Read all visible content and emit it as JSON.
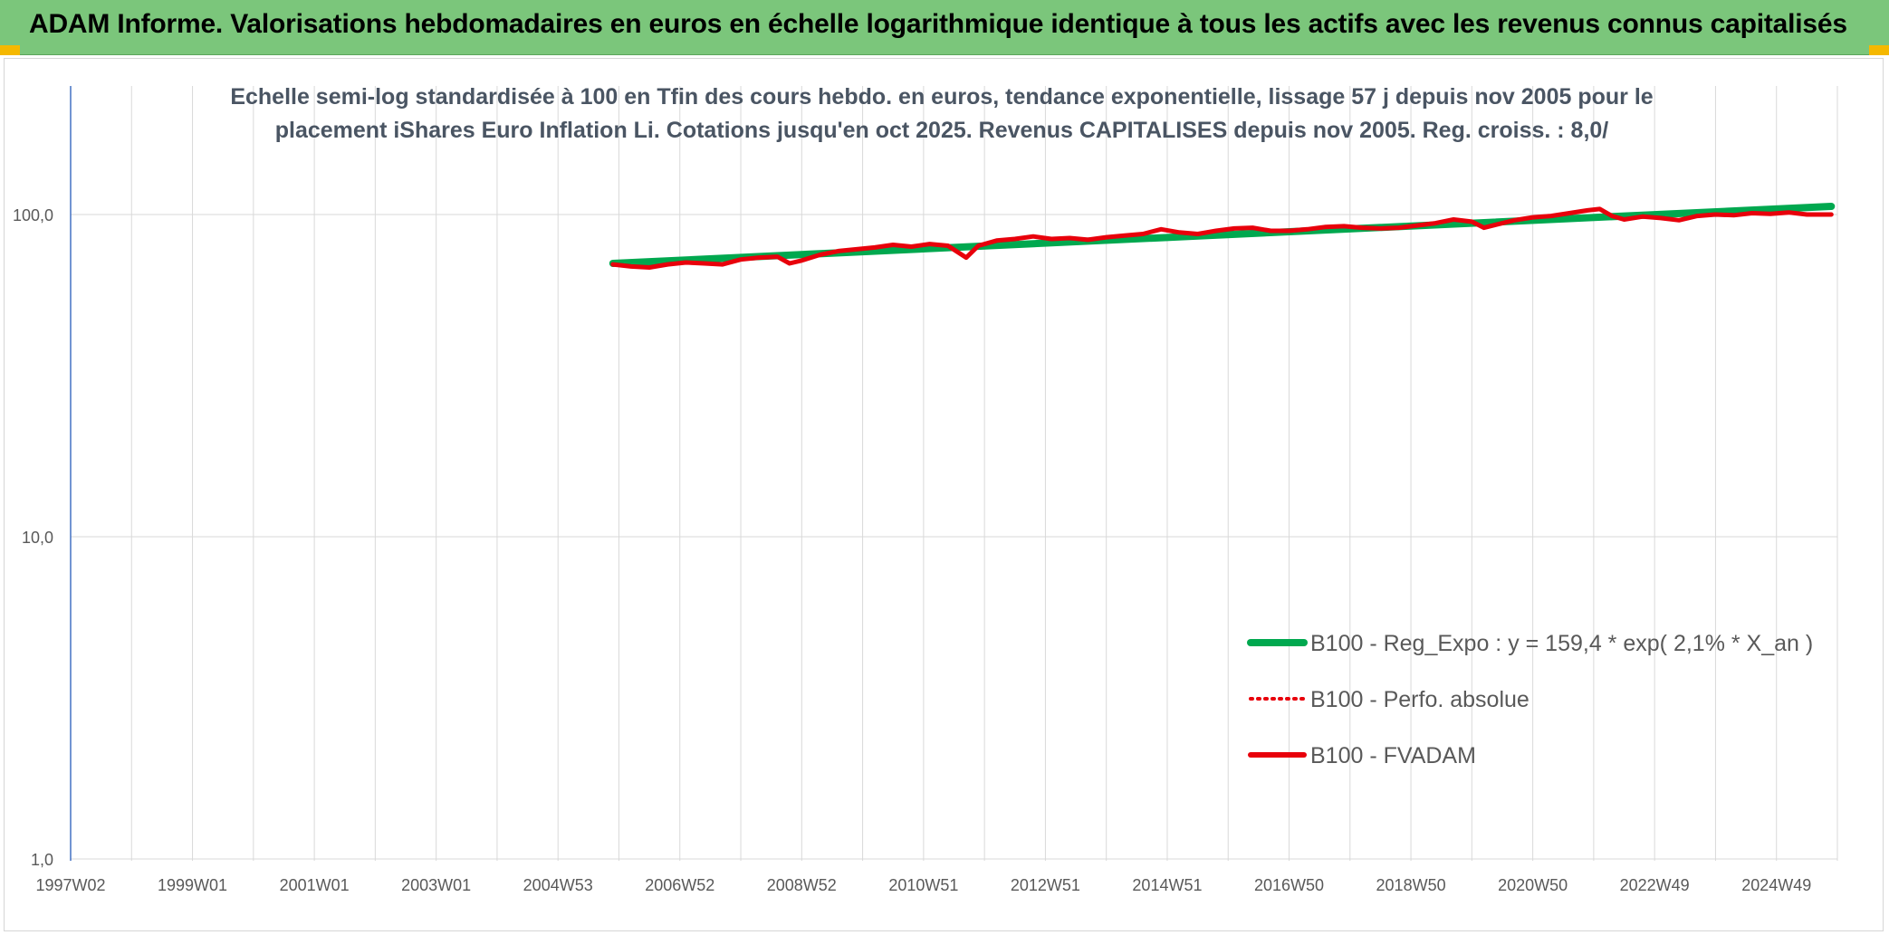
{
  "header": {
    "title": "ADAM Informe. Valorisations hebdomadaires en euros en échelle logarithmique identique à tous les actifs avec les revenus connus capitalisés"
  },
  "colors": {
    "header_bg": "#7bc67b",
    "accent_corner": "#f5b800",
    "trend_line": "#00a84f",
    "series_line": "#e8000b",
    "grid": "#d9d9d9",
    "axis": "#4472c4"
  },
  "chart_data": {
    "type": "line",
    "title_lines": [
      "Echelle semi-log standardisée à 100 en Tfin des cours hebdo. en euros, tendance exponentielle, lissage 57 j depuis nov 2005 pour le",
      "placement iShares Euro Inflation Li. Cotations jusqu'en oct 2025. Revenus CAPITALISES depuis nov 2005. Reg. croiss. : 8,0/"
    ],
    "y_scale": "log",
    "ylim": [
      1,
      200
    ],
    "y_ticks": [
      "100,0",
      "10,0",
      "1,0"
    ],
    "x_ticks": [
      "1997W02",
      "1999W01",
      "2001W01",
      "2003W01",
      "2004W53",
      "2006W52",
      "2008W52",
      "2010W51",
      "2012W51",
      "2014W51",
      "2016W50",
      "2018W50",
      "2020W50",
      "2022W49",
      "2024W49"
    ],
    "xlim": [
      1997.0,
      2026.0
    ],
    "grid": true,
    "legend_position": "bottom-right",
    "series": [
      {
        "name": "B100 - Reg_Expo : y = 159,4 * exp( 2,1% *  X_an )",
        "style": "solid-thick",
        "color": "#00a84f",
        "x": [
          2005.9,
          2025.9
        ],
        "y": [
          70.5,
          106.0
        ]
      },
      {
        "name": "B100 - Perfo. absolue",
        "style": "dotted",
        "color": "#e8000b",
        "x": [],
        "y": []
      },
      {
        "name": "B100 - FVADAM",
        "style": "solid",
        "color": "#e8000b",
        "x": [
          2005.9,
          2006.2,
          2006.5,
          2006.8,
          2007.1,
          2007.4,
          2007.7,
          2008.0,
          2008.3,
          2008.6,
          2008.8,
          2009.0,
          2009.3,
          2009.6,
          2009.9,
          2010.2,
          2010.5,
          2010.8,
          2011.1,
          2011.4,
          2011.7,
          2011.9,
          2012.2,
          2012.5,
          2012.8,
          2013.1,
          2013.4,
          2013.7,
          2014.0,
          2014.3,
          2014.6,
          2014.9,
          2015.2,
          2015.5,
          2015.8,
          2016.1,
          2016.4,
          2016.7,
          2017.0,
          2017.3,
          2017.6,
          2017.9,
          2018.2,
          2018.5,
          2018.8,
          2019.1,
          2019.4,
          2019.7,
          2020.0,
          2020.2,
          2020.4,
          2020.7,
          2021.0,
          2021.3,
          2021.6,
          2021.9,
          2022.1,
          2022.3,
          2022.5,
          2022.8,
          2023.1,
          2023.4,
          2023.7,
          2024.0,
          2024.3,
          2024.6,
          2024.9,
          2025.2,
          2025.5,
          2025.9
        ],
        "y": [
          70.0,
          69.0,
          68.5,
          70.0,
          71.0,
          70.5,
          70.0,
          72.5,
          73.5,
          74.0,
          70.5,
          72.0,
          75.0,
          77.0,
          78.0,
          79.0,
          80.5,
          79.5,
          81.0,
          80.0,
          73.5,
          80.0,
          83.0,
          84.0,
          85.5,
          84.0,
          84.5,
          83.5,
          85.0,
          86.0,
          87.0,
          90.0,
          88.0,
          87.0,
          89.0,
          90.5,
          91.0,
          89.0,
          89.0,
          90.0,
          91.5,
          92.0,
          91.0,
          90.5,
          91.0,
          92.5,
          94.0,
          96.5,
          95.0,
          91.0,
          93.0,
          96.0,
          98.0,
          99.0,
          101.0,
          103.0,
          104.0,
          99.0,
          96.5,
          98.5,
          97.5,
          96.0,
          99.0,
          100.0,
          99.5,
          101.0,
          100.5,
          101.5,
          100.0,
          100.0
        ]
      }
    ]
  }
}
